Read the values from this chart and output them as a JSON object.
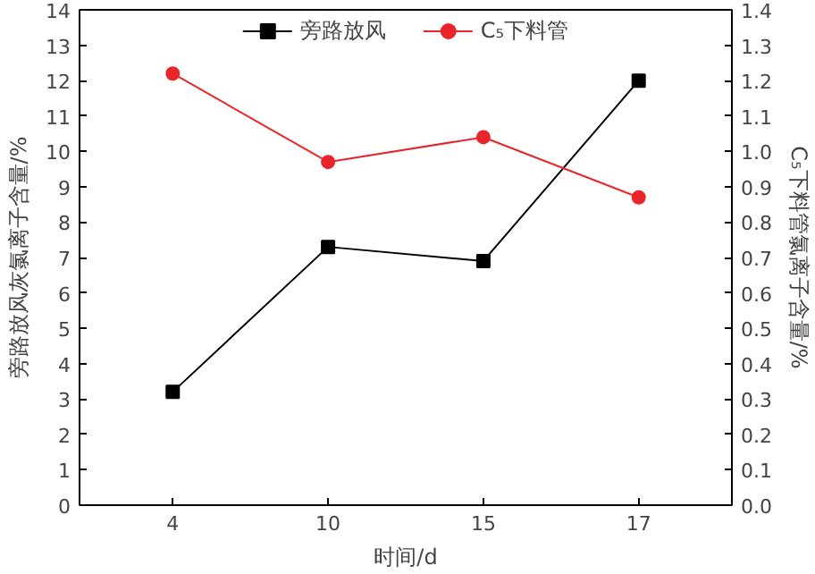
{
  "chart_data": {
    "type": "line",
    "xlabel": "时间/d",
    "ylabel": "旁路放风灰氯离子含量/%",
    "y2label": "C₅下料管氯离子含量/%",
    "categories": [
      "4",
      "10",
      "15",
      "17"
    ],
    "series": [
      {
        "name": "旁路放风",
        "color": "#000000",
        "marker": "square",
        "values": [
          3.2,
          7.3,
          6.9,
          12.0
        ]
      },
      {
        "name": "C₅下料管",
        "color": "#e8262a",
        "marker": "circle",
        "axis": "y2",
        "values": [
          1.22,
          0.97,
          1.04,
          0.87
        ]
      }
    ],
    "ylim": [
      0,
      14
    ],
    "yticks": [
      0,
      1,
      2,
      3,
      4,
      5,
      6,
      7,
      8,
      9,
      10,
      11,
      12,
      13,
      14
    ],
    "y2lim": [
      0,
      1.4
    ],
    "y2ticks": [
      {
        "value": 0,
        "label": "0.0"
      },
      0.1,
      0.2,
      0.3,
      0.4,
      0.5,
      0.6,
      0.7,
      0.8,
      0.9,
      {
        "value": 1,
        "label": "1.0"
      },
      1.1,
      1.2,
      1.3,
      1.4
    ],
    "grid": false,
    "legend": "top",
    "line_style": "solid"
  }
}
